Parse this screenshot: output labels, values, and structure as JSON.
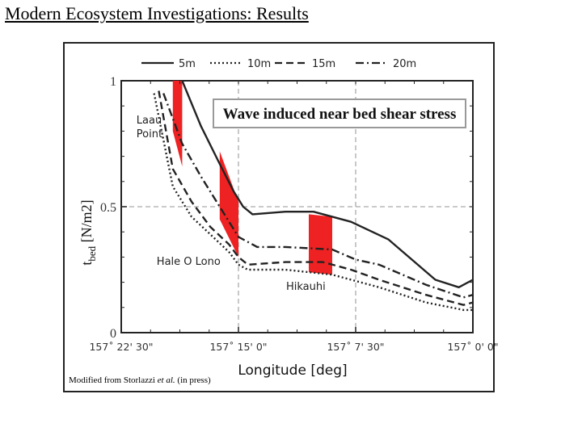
{
  "slide": {
    "title": "Modern Ecosystem Investigations: Results"
  },
  "caption": {
    "before": "Modified from Storlazzi ",
    "italic": "et al.",
    "after": " (in press)"
  },
  "colors": {
    "band": "#ee2222",
    "line": "#222222",
    "grid": "#aaaaaa",
    "frame": "#222222"
  },
  "chart_data": {
    "type": "line",
    "title": "Wave induced near bed shear stress",
    "xlabel": "Longitude [deg]",
    "ylabel_main": "t",
    "ylabel_sub": "bed",
    "ylabel_unit": "[N/m2]",
    "xlim": [
      157.375,
      157.0
    ],
    "ylim": [
      0,
      1
    ],
    "x_ticks": [
      {
        "value": 157.375,
        "label": "157˚ 22' 30\""
      },
      {
        "value": 157.25,
        "label": "157˚ 15' 0\""
      },
      {
        "value": 157.125,
        "label": "157˚ 7' 30\""
      },
      {
        "value": 157.0,
        "label": "157˚ 0' 0\""
      }
    ],
    "y_ticks": [
      {
        "value": 0,
        "label": "0"
      },
      {
        "value": 0.5,
        "label": "0.5"
      },
      {
        "value": 1,
        "label": "1"
      }
    ],
    "grid": "dashed at 157˚ 15' 0\", 157˚ 7' 30\" and 0.5",
    "legend": "top",
    "series": [
      {
        "name": "5m",
        "dash": "solid",
        "x": [
          157.31,
          157.29,
          157.27,
          157.255,
          157.245,
          157.235,
          157.2,
          157.17,
          157.13,
          157.09,
          157.04,
          157.015,
          157.0
        ],
        "y": [
          1.0,
          0.82,
          0.67,
          0.56,
          0.5,
          0.47,
          0.48,
          0.48,
          0.44,
          0.37,
          0.21,
          0.18,
          0.21
        ]
      },
      {
        "name": "10m",
        "dash": "dot",
        "x": [
          157.34,
          157.32,
          157.3,
          157.28,
          157.26,
          157.25,
          157.24,
          157.2,
          157.15,
          157.1,
          157.05,
          157.01,
          157.0
        ],
        "y": [
          0.95,
          0.58,
          0.46,
          0.39,
          0.32,
          0.27,
          0.25,
          0.25,
          0.23,
          0.18,
          0.12,
          0.09,
          0.09
        ]
      },
      {
        "name": "15m",
        "dash": "dashed",
        "x": [
          157.335,
          157.32,
          157.3,
          157.28,
          157.26,
          157.25,
          157.24,
          157.2,
          157.16,
          157.13,
          157.1,
          157.05,
          157.01,
          157.0
        ],
        "y": [
          0.96,
          0.65,
          0.52,
          0.42,
          0.35,
          0.3,
          0.27,
          0.28,
          0.28,
          0.25,
          0.21,
          0.15,
          0.11,
          0.12
        ]
      },
      {
        "name": "20m",
        "dash": "dash-dot",
        "x": [
          157.33,
          157.31,
          157.29,
          157.27,
          157.25,
          157.23,
          157.2,
          157.15,
          157.125,
          157.1,
          157.05,
          157.01,
          157.0
        ],
        "y": [
          0.95,
          0.75,
          0.62,
          0.5,
          0.38,
          0.34,
          0.34,
          0.33,
          0.29,
          0.27,
          0.19,
          0.14,
          0.15
        ]
      }
    ],
    "bands": [
      {
        "label": "Laau Point",
        "x_left": 157.32,
        "x_right": 157.31,
        "top_left": 1.0,
        "top_right": 1.0,
        "bottom_left": 0.8,
        "bottom_right": 0.66
      },
      {
        "label": "Hale O Lono",
        "x_left": 157.27,
        "x_right": 157.25,
        "top_left": 0.72,
        "top_right": 0.52,
        "bottom_left": 0.45,
        "bottom_right": 0.3
      },
      {
        "label": "Hikauhi",
        "x_left": 157.175,
        "x_right": 157.15,
        "top_left": 0.47,
        "top_right": 0.46,
        "bottom_left": 0.24,
        "bottom_right": 0.23
      }
    ]
  }
}
